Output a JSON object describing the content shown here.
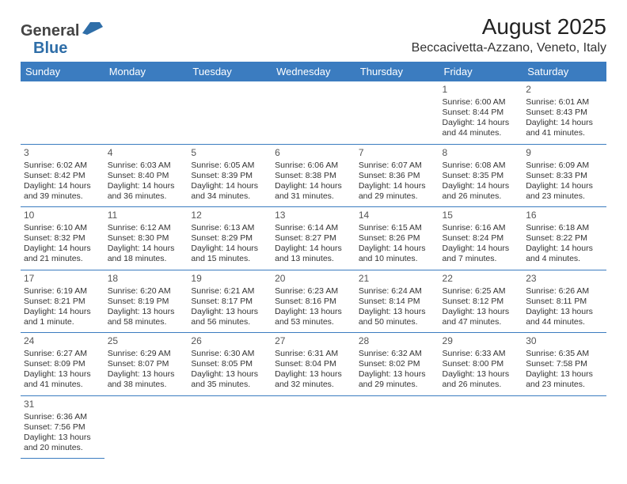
{
  "logo": {
    "text1": "General",
    "text2": "Blue",
    "shape_color": "#2f6ea8"
  },
  "title": "August 2025",
  "location": "Beccacivetta-Azzano, Veneto, Italy",
  "header_bg": "#3b7cc0",
  "header_text_color": "#ffffff",
  "border_color": "#3b7cc0",
  "day_headers": [
    "Sunday",
    "Monday",
    "Tuesday",
    "Wednesday",
    "Thursday",
    "Friday",
    "Saturday"
  ],
  "weeks": [
    [
      null,
      null,
      null,
      null,
      null,
      {
        "d": "1",
        "rise": "Sunrise: 6:00 AM",
        "set": "Sunset: 8:44 PM",
        "day": "Daylight: 14 hours and 44 minutes."
      },
      {
        "d": "2",
        "rise": "Sunrise: 6:01 AM",
        "set": "Sunset: 8:43 PM",
        "day": "Daylight: 14 hours and 41 minutes."
      }
    ],
    [
      {
        "d": "3",
        "rise": "Sunrise: 6:02 AM",
        "set": "Sunset: 8:42 PM",
        "day": "Daylight: 14 hours and 39 minutes."
      },
      {
        "d": "4",
        "rise": "Sunrise: 6:03 AM",
        "set": "Sunset: 8:40 PM",
        "day": "Daylight: 14 hours and 36 minutes."
      },
      {
        "d": "5",
        "rise": "Sunrise: 6:05 AM",
        "set": "Sunset: 8:39 PM",
        "day": "Daylight: 14 hours and 34 minutes."
      },
      {
        "d": "6",
        "rise": "Sunrise: 6:06 AM",
        "set": "Sunset: 8:38 PM",
        "day": "Daylight: 14 hours and 31 minutes."
      },
      {
        "d": "7",
        "rise": "Sunrise: 6:07 AM",
        "set": "Sunset: 8:36 PM",
        "day": "Daylight: 14 hours and 29 minutes."
      },
      {
        "d": "8",
        "rise": "Sunrise: 6:08 AM",
        "set": "Sunset: 8:35 PM",
        "day": "Daylight: 14 hours and 26 minutes."
      },
      {
        "d": "9",
        "rise": "Sunrise: 6:09 AM",
        "set": "Sunset: 8:33 PM",
        "day": "Daylight: 14 hours and 23 minutes."
      }
    ],
    [
      {
        "d": "10",
        "rise": "Sunrise: 6:10 AM",
        "set": "Sunset: 8:32 PM",
        "day": "Daylight: 14 hours and 21 minutes."
      },
      {
        "d": "11",
        "rise": "Sunrise: 6:12 AM",
        "set": "Sunset: 8:30 PM",
        "day": "Daylight: 14 hours and 18 minutes."
      },
      {
        "d": "12",
        "rise": "Sunrise: 6:13 AM",
        "set": "Sunset: 8:29 PM",
        "day": "Daylight: 14 hours and 15 minutes."
      },
      {
        "d": "13",
        "rise": "Sunrise: 6:14 AM",
        "set": "Sunset: 8:27 PM",
        "day": "Daylight: 14 hours and 13 minutes."
      },
      {
        "d": "14",
        "rise": "Sunrise: 6:15 AM",
        "set": "Sunset: 8:26 PM",
        "day": "Daylight: 14 hours and 10 minutes."
      },
      {
        "d": "15",
        "rise": "Sunrise: 6:16 AM",
        "set": "Sunset: 8:24 PM",
        "day": "Daylight: 14 hours and 7 minutes."
      },
      {
        "d": "16",
        "rise": "Sunrise: 6:18 AM",
        "set": "Sunset: 8:22 PM",
        "day": "Daylight: 14 hours and 4 minutes."
      }
    ],
    [
      {
        "d": "17",
        "rise": "Sunrise: 6:19 AM",
        "set": "Sunset: 8:21 PM",
        "day": "Daylight: 14 hours and 1 minute."
      },
      {
        "d": "18",
        "rise": "Sunrise: 6:20 AM",
        "set": "Sunset: 8:19 PM",
        "day": "Daylight: 13 hours and 58 minutes."
      },
      {
        "d": "19",
        "rise": "Sunrise: 6:21 AM",
        "set": "Sunset: 8:17 PM",
        "day": "Daylight: 13 hours and 56 minutes."
      },
      {
        "d": "20",
        "rise": "Sunrise: 6:23 AM",
        "set": "Sunset: 8:16 PM",
        "day": "Daylight: 13 hours and 53 minutes."
      },
      {
        "d": "21",
        "rise": "Sunrise: 6:24 AM",
        "set": "Sunset: 8:14 PM",
        "day": "Daylight: 13 hours and 50 minutes."
      },
      {
        "d": "22",
        "rise": "Sunrise: 6:25 AM",
        "set": "Sunset: 8:12 PM",
        "day": "Daylight: 13 hours and 47 minutes."
      },
      {
        "d": "23",
        "rise": "Sunrise: 6:26 AM",
        "set": "Sunset: 8:11 PM",
        "day": "Daylight: 13 hours and 44 minutes."
      }
    ],
    [
      {
        "d": "24",
        "rise": "Sunrise: 6:27 AM",
        "set": "Sunset: 8:09 PM",
        "day": "Daylight: 13 hours and 41 minutes."
      },
      {
        "d": "25",
        "rise": "Sunrise: 6:29 AM",
        "set": "Sunset: 8:07 PM",
        "day": "Daylight: 13 hours and 38 minutes."
      },
      {
        "d": "26",
        "rise": "Sunrise: 6:30 AM",
        "set": "Sunset: 8:05 PM",
        "day": "Daylight: 13 hours and 35 minutes."
      },
      {
        "d": "27",
        "rise": "Sunrise: 6:31 AM",
        "set": "Sunset: 8:04 PM",
        "day": "Daylight: 13 hours and 32 minutes."
      },
      {
        "d": "28",
        "rise": "Sunrise: 6:32 AM",
        "set": "Sunset: 8:02 PM",
        "day": "Daylight: 13 hours and 29 minutes."
      },
      {
        "d": "29",
        "rise": "Sunrise: 6:33 AM",
        "set": "Sunset: 8:00 PM",
        "day": "Daylight: 13 hours and 26 minutes."
      },
      {
        "d": "30",
        "rise": "Sunrise: 6:35 AM",
        "set": "Sunset: 7:58 PM",
        "day": "Daylight: 13 hours and 23 minutes."
      }
    ],
    [
      {
        "d": "31",
        "rise": "Sunrise: 6:36 AM",
        "set": "Sunset: 7:56 PM",
        "day": "Daylight: 13 hours and 20 minutes."
      },
      null,
      null,
      null,
      null,
      null,
      null
    ]
  ]
}
